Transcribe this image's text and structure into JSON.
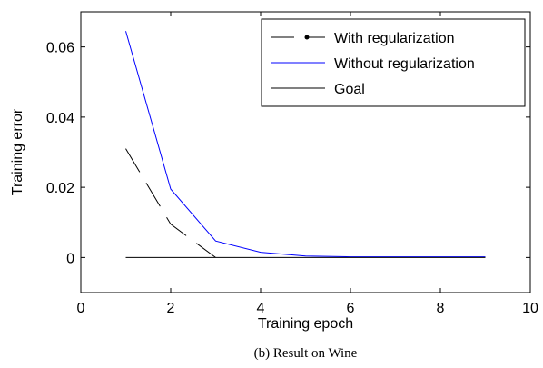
{
  "chart_data": {
    "type": "line",
    "caption": "(b) Result on Wine",
    "xlabel": "Training epoch",
    "ylabel": "Training error",
    "xlim": [
      0,
      10
    ],
    "ylim": [
      -0.01,
      0.07
    ],
    "xticks": [
      0,
      2,
      4,
      6,
      8,
      10
    ],
    "yticks": [
      0,
      0.02,
      0.04,
      0.06
    ],
    "xtick_labels": [
      "0",
      "2",
      "4",
      "6",
      "8",
      "10"
    ],
    "ytick_labels": [
      "0",
      "0.02",
      "0.04",
      "0.06"
    ],
    "grid": false,
    "legend_position": "top-right",
    "series": [
      {
        "name": "With regularization",
        "color": "#000000",
        "style": "dashed",
        "marker": "dot",
        "x": [
          1,
          2,
          3
        ],
        "y": [
          0.031,
          0.0095,
          0
        ]
      },
      {
        "name": "Without regularization",
        "color": "#0000ff",
        "style": "solid",
        "x": [
          1,
          2,
          3,
          4,
          5,
          6,
          7,
          8,
          9
        ],
        "y": [
          0.0645,
          0.0195,
          0.0047,
          0.0015,
          0.0004,
          0.0002,
          0.0002,
          0.0002,
          0.0002
        ]
      },
      {
        "name": "Goal",
        "color": "#000000",
        "style": "solid",
        "x": [
          1,
          9
        ],
        "y": [
          0,
          0
        ]
      }
    ]
  }
}
